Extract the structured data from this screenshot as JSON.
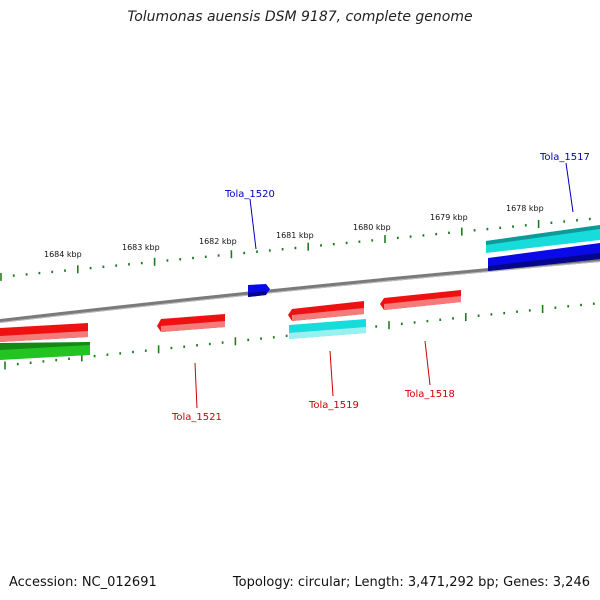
{
  "title": "Tolumonas auensis DSM 9187, complete genome",
  "footer": {
    "accession": "Accession: NC_012691",
    "stats": "Topology: circular; Length: 3,471,292 bp; Genes: 3,246"
  },
  "colors": {
    "backbone": "#7a7a7a",
    "tick": "#1e7d1e",
    "red": "#ee1111",
    "cyan": "#16dcdc",
    "blue": "#0a0ae6",
    "green": "#22c422",
    "label_red": "#cc0000",
    "label_blue": "#0000bb"
  },
  "scale_labels": [
    "1684 kbp",
    "1683 kbp",
    "1682 kbp",
    "1681 kbp",
    "1680 kbp",
    "1679 kbp",
    "1678 kbp"
  ],
  "gene_labels": [
    {
      "name": "Tola_1517",
      "color": "blue"
    },
    {
      "name": "Tola_1520",
      "color": "blue"
    },
    {
      "name": "Tola_1521",
      "color": "red"
    },
    {
      "name": "Tola_1519",
      "color": "red"
    },
    {
      "name": "Tola_1518",
      "color": "red"
    }
  ]
}
